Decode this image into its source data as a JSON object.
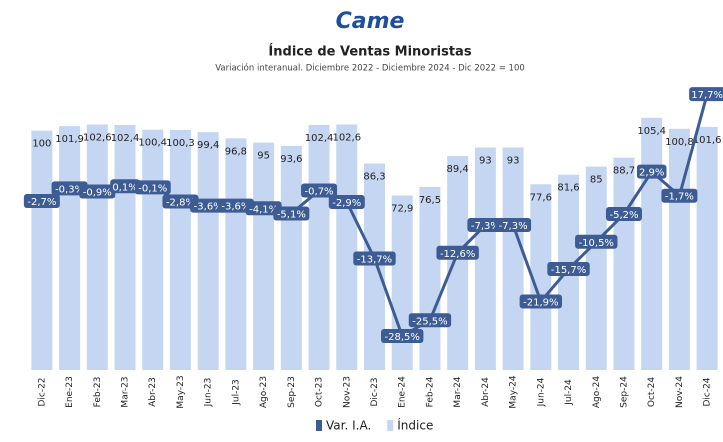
{
  "logo": "Came",
  "chart_data": {
    "type": "bar-line",
    "title": "Índice de Ventas Minoristas",
    "subtitle": "Variación interanual. Diciembre 2022 - Diciembre 2024 - Dic 2022 = 100",
    "categories": [
      "Dic-22",
      "Ene-23",
      "Feb-23",
      "Mar-23",
      "Abr-23",
      "May-23",
      "Jun-23",
      "Jul-23",
      "Ago-23",
      "Sep-23",
      "Oct-23",
      "Nov-23",
      "Dic-23",
      "Ene-24",
      "Feb-24",
      "Mar-24",
      "Abr-24",
      "May-24",
      "Jun-24",
      "Jul-24",
      "Ago-24",
      "Sep-24",
      "Oct-24",
      "Nov-24",
      "Dic-24"
    ],
    "series": [
      {
        "name": "Var. I.A.",
        "type": "line",
        "axis": "y2",
        "color": "#3d5c94",
        "values": [
          -2.7,
          -0.3,
          -0.9,
          0.1,
          -0.1,
          -2.8,
          -3.6,
          -3.6,
          -4.1,
          -5.1,
          -0.7,
          -2.9,
          -13.7,
          -28.5,
          -25.5,
          -12.6,
          -7.3,
          -7.3,
          -21.9,
          -15.7,
          -10.5,
          -5.2,
          2.9,
          -1.7,
          17.7
        ],
        "value_labels": [
          "-2,7%",
          "-0,3%",
          "-0,9%",
          "0,1%",
          "-0,1%",
          "-2,8%",
          "-3,6%",
          "-3,6%",
          "-4,1%",
          "-5,1%",
          "-0,7%",
          "-2,9%",
          "-13,7%",
          "-28,5%",
          "-25,5%",
          "-12,6%",
          "-7,3%",
          "-7,3%",
          "-21,9%",
          "-15,7%",
          "-10,5%",
          "-5,2%",
          "2,9%",
          "-1,7%",
          "17,7%"
        ]
      },
      {
        "name": "Índice",
        "type": "bar",
        "color": "#c5d6f2",
        "values": [
          100,
          101.9,
          102.6,
          102.4,
          100.4,
          100.3,
          99.4,
          96.8,
          95,
          93.6,
          102.4,
          102.6,
          86.3,
          72.9,
          76.5,
          89.4,
          93,
          93,
          77.6,
          81.6,
          85,
          88.7,
          105.4,
          100.8,
          101.6
        ],
        "value_labels": [
          "100",
          "101,9",
          "102,6",
          "102,4",
          "100,4",
          "100,3",
          "99,4",
          "96,8",
          "95",
          "93,6",
          "102,4",
          "102,6",
          "86,3",
          "72,9",
          "76,5",
          "89,4",
          "93",
          "93",
          "77,6",
          "81,6",
          "85",
          "88,7",
          "105,4",
          "100,8",
          "101,6"
        ]
      }
    ],
    "ylim": [
      0,
      117
    ],
    "y2lim": [
      -35,
      18.5
    ],
    "legend": "bottom"
  }
}
